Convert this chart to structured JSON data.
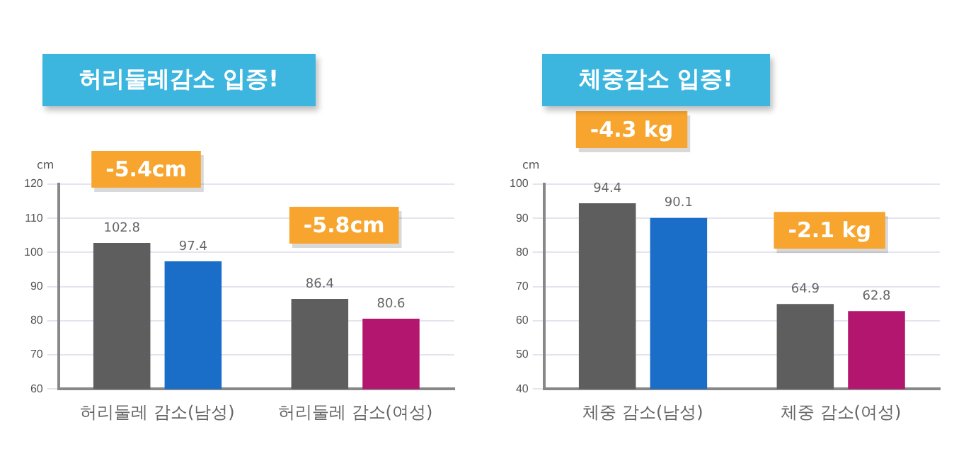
{
  "chart_data": [
    {
      "type": "bar",
      "title": "허리둘레감소 입증!",
      "ylabel": "cm",
      "categories": [
        "허리둘레 감소(남성)",
        "허리둘레 감소(여성)"
      ],
      "series": [
        {
          "colors": [
            "#5e5e5e",
            "#5e5e5e"
          ],
          "values": [
            102.8,
            86.4
          ]
        },
        {
          "colors": [
            "#1a6ec8",
            "#b3166e"
          ],
          "values": [
            97.4,
            80.6
          ]
        }
      ],
      "ylim": [
        60,
        120
      ],
      "yticks": [
        60,
        70,
        80,
        90,
        100,
        110,
        120
      ],
      "grid": "y",
      "data_labels": true,
      "annotations": [
        "-5.4cm",
        "-5.8cm"
      ]
    },
    {
      "type": "bar",
      "title": "체중감소 입증!",
      "ylabel": "cm",
      "categories": [
        "체중 감소(남성)",
        "체중 감소(여성)"
      ],
      "series": [
        {
          "colors": [
            "#5e5e5e",
            "#5e5e5e"
          ],
          "values": [
            94.4,
            64.9
          ]
        },
        {
          "colors": [
            "#1a6ec8",
            "#b3166e"
          ],
          "values": [
            90.1,
            62.8
          ]
        }
      ],
      "ylim": [
        40,
        100
      ],
      "yticks": [
        40,
        50,
        60,
        70,
        80,
        90,
        100
      ],
      "grid": "y",
      "data_labels": true,
      "annotations": [
        "-4.3 kg",
        "-2.1 kg"
      ]
    }
  ]
}
